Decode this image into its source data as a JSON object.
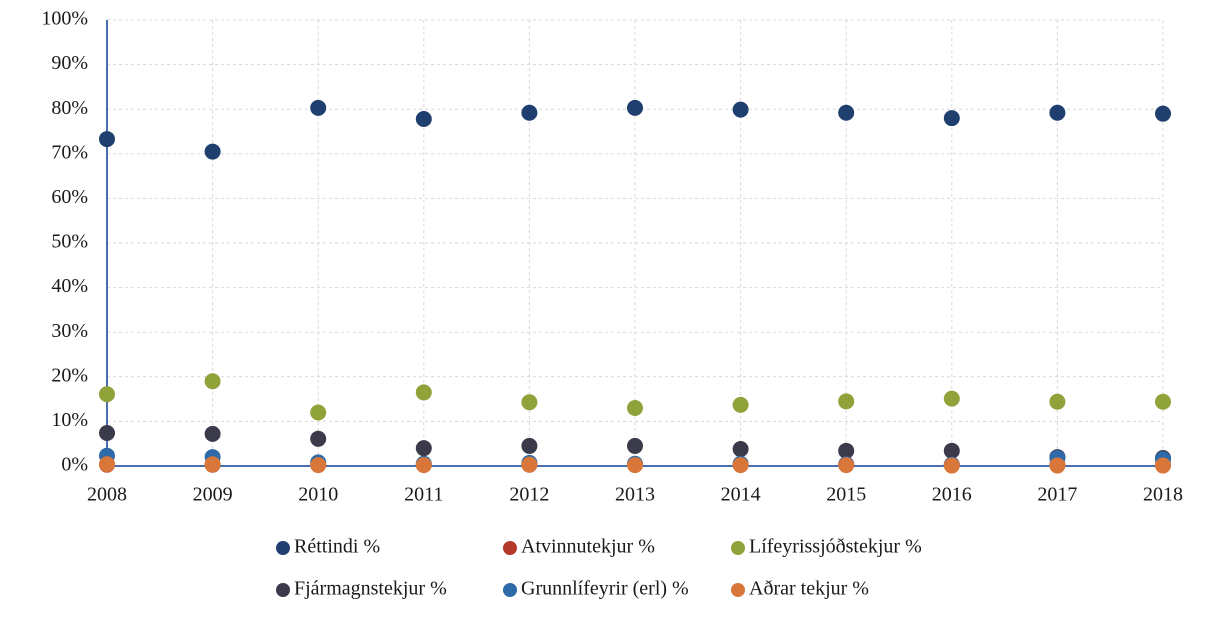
{
  "chart_data": {
    "type": "scatter",
    "x": [
      2008,
      2009,
      2010,
      2011,
      2012,
      2013,
      2014,
      2015,
      2016,
      2017,
      2018
    ],
    "xlim": [
      2008,
      2018
    ],
    "xticks": [
      2008,
      2009,
      2010,
      2011,
      2012,
      2013,
      2014,
      2015,
      2016,
      2017,
      2018
    ],
    "ylim": [
      0,
      100
    ],
    "yticks": [
      {
        "value": 0,
        "label": "0%"
      },
      {
        "value": 10,
        "label": "10%"
      },
      {
        "value": 20,
        "label": "20%"
      },
      {
        "value": 30,
        "label": "30%"
      },
      {
        "value": 40,
        "label": "40%"
      },
      {
        "value": 50,
        "label": "50%"
      },
      {
        "value": 60,
        "label": "60%"
      },
      {
        "value": 70,
        "label": "70%"
      },
      {
        "value": 80,
        "label": "80%"
      },
      {
        "value": 90,
        "label": "90%"
      },
      {
        "value": 100,
        "label": "100%"
      }
    ],
    "grid": true,
    "legend": "bottom",
    "series": [
      {
        "name": "Réttindi %",
        "color": "#1f3f6e",
        "values": [
          73.3,
          70.5,
          80.3,
          77.8,
          79.2,
          80.3,
          79.9,
          79.2,
          78.0,
          79.2,
          79.0
        ]
      },
      {
        "name": "Atvinnutekjur %",
        "color": "#b33a2a",
        "values": [
          0.3,
          0.3,
          0.3,
          0.3,
          0.3,
          0.3,
          0.3,
          0.3,
          0.3,
          0.3,
          0.3
        ]
      },
      {
        "name": "Lífeyrissjóðstekjur %",
        "color": "#8fa33a",
        "values": [
          16.1,
          19.0,
          12.0,
          16.5,
          14.3,
          13.0,
          13.7,
          14.5,
          15.1,
          14.4,
          14.4
        ]
      },
      {
        "name": "Fjármagnstekjur %",
        "color": "#3a3a4a",
        "values": [
          7.4,
          7.2,
          6.1,
          4.0,
          4.5,
          4.5,
          3.8,
          3.4,
          3.4,
          2.0,
          1.8
        ]
      },
      {
        "name": "Grunnlífeyrir (erl) %",
        "color": "#2e6aa8",
        "values": [
          2.3,
          2.0,
          0.8,
          0.5,
          0.7,
          0.5,
          0.5,
          0.4,
          0.3,
          1.8,
          1.5
        ]
      },
      {
        "name": "Aðrar tekjur %",
        "color": "#d9773a",
        "values": [
          0.4,
          0.4,
          0.2,
          0.2,
          0.3,
          0.2,
          0.2,
          0.2,
          0.1,
          0.1,
          0.1
        ]
      }
    ]
  }
}
